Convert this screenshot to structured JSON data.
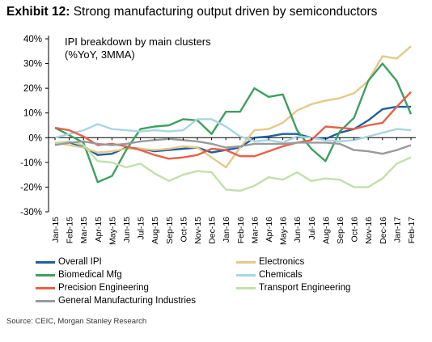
{
  "header": {
    "label": "Exhibit 12:",
    "title": "Strong manufacturing output driven by semiconductors"
  },
  "chart_data": {
    "type": "line",
    "title": "IPI breakdown by main clusters",
    "subtitle": "(%YoY, 3MMA)",
    "ylim": [
      -30,
      40
    ],
    "yticks": [
      -30,
      -20,
      -10,
      0,
      10,
      20,
      30,
      40
    ],
    "ytick_labels": [
      "-30%",
      "-20%",
      "-10%",
      "0%",
      "10%",
      "20%",
      "30%",
      "40%"
    ],
    "grid": false,
    "legend_position": "bottom",
    "x": [
      "Jan-15",
      "Feb-15",
      "Mar-15",
      "Apr-15",
      "May-15",
      "Jun-15",
      "Jul-15",
      "Aug-15",
      "Sep-15",
      "Oct-15",
      "Nov-15",
      "Dec-15",
      "Jan-16",
      "Feb-16",
      "Mar-16",
      "Apr-16",
      "May-16",
      "Jun-16",
      "Jul-16",
      "Aug-16",
      "Sep-16",
      "Oct-16",
      "Nov-16",
      "Dec-16",
      "Jan-17",
      "Feb-17"
    ],
    "xtick_labels": [
      "Jan-15",
      "Feb-15",
      "Mar-15",
      "Apr-15",
      "May-15",
      "Jun-15",
      "Jul-15",
      "Aug-15",
      "Sep-15",
      "Oct-15",
      "Nov-15",
      "Dec-15",
      "Jan-16",
      "Feb-16",
      "Mar-16",
      "Apr-16",
      "May-16",
      "Jun-16",
      "Jul-16",
      "Aug-16",
      "Sep-16",
      "Oct-16",
      "Nov-16",
      "Dec-16",
      "Jan-17",
      "Feb-17"
    ],
    "series": [
      {
        "name": "Overall IPI",
        "color": "#1f5f9e",
        "values": [
          -2.5,
          -2.0,
          -3.5,
          -7.0,
          -6.5,
          -4.0,
          -4.5,
          -5.5,
          -5.0,
          -4.5,
          -4.0,
          -6.0,
          -5.0,
          -4.0,
          0.0,
          0.5,
          1.5,
          1.5,
          0.0,
          -0.5,
          2.0,
          3.5,
          7.0,
          11.5,
          12.5,
          12.5
        ]
      },
      {
        "name": "Electronics",
        "color": "#e6c88a",
        "values": [
          -2.0,
          -3.0,
          -4.0,
          -6.0,
          -5.5,
          -4.5,
          -4.5,
          -5.0,
          -4.5,
          -3.5,
          -4.0,
          -8.0,
          -12.0,
          -4.0,
          3.0,
          3.5,
          6.0,
          11.0,
          13.5,
          15.0,
          16.0,
          18.0,
          23.0,
          33.0,
          32.0,
          37.0
        ]
      },
      {
        "name": "Biomedical Mfg",
        "color": "#3f9f5f",
        "values": [
          4.0,
          1.0,
          -2.0,
          -18.0,
          -15.5,
          -5.0,
          3.5,
          4.5,
          5.0,
          7.5,
          7.0,
          1.5,
          10.5,
          10.5,
          20.0,
          16.5,
          17.5,
          3.0,
          -4.5,
          -9.5,
          2.5,
          8.0,
          23.0,
          30.0,
          23.0,
          9.5
        ]
      },
      {
        "name": "Chemicals",
        "color": "#a8d6e0",
        "values": [
          0.0,
          1.5,
          3.0,
          5.5,
          3.5,
          3.0,
          2.5,
          3.0,
          2.5,
          3.0,
          7.5,
          7.5,
          4.5,
          0.5,
          -1.5,
          -1.0,
          -2.0,
          0.5,
          0.0,
          -1.0,
          -1.5,
          -1.0,
          0.5,
          2.0,
          3.5,
          3.0
        ]
      },
      {
        "name": "Precision Engineering",
        "color": "#e8604a",
        "values": [
          4.0,
          3.0,
          0.5,
          -3.0,
          -2.5,
          -3.5,
          -5.0,
          -7.0,
          -8.5,
          -8.0,
          -7.0,
          -4.5,
          -5.0,
          -7.5,
          -7.5,
          -5.5,
          -3.5,
          -2.0,
          -1.0,
          4.5,
          4.0,
          3.5,
          5.0,
          6.0,
          12.5,
          18.5
        ]
      },
      {
        "name": "Transport Engineering",
        "color": "#c2e0a8",
        "values": [
          -2.0,
          -1.5,
          -3.0,
          -9.5,
          -10.0,
          -12.0,
          -10.5,
          -14.5,
          -17.5,
          -15.0,
          -13.5,
          -14.0,
          -21.0,
          -21.5,
          -19.5,
          -16.0,
          -17.0,
          -14.0,
          -17.5,
          -16.5,
          -17.0,
          -20.0,
          -20.0,
          -16.5,
          -10.5,
          -8.0
        ]
      },
      {
        "name": "General Manufacturing Industries",
        "color": "#9a9a9a",
        "values": [
          -3.0,
          -2.0,
          -1.5,
          -2.5,
          -3.0,
          -2.5,
          -1.5,
          -1.0,
          -0.5,
          -1.0,
          -1.5,
          -2.5,
          -4.0,
          -3.5,
          -2.5,
          -2.5,
          -2.5,
          -2.0,
          -2.0,
          -2.0,
          -2.5,
          -5.0,
          -5.5,
          -6.5,
          -5.0,
          -3.0
        ]
      }
    ]
  },
  "source": "Source: CEIC, Morgan Stanley Research"
}
